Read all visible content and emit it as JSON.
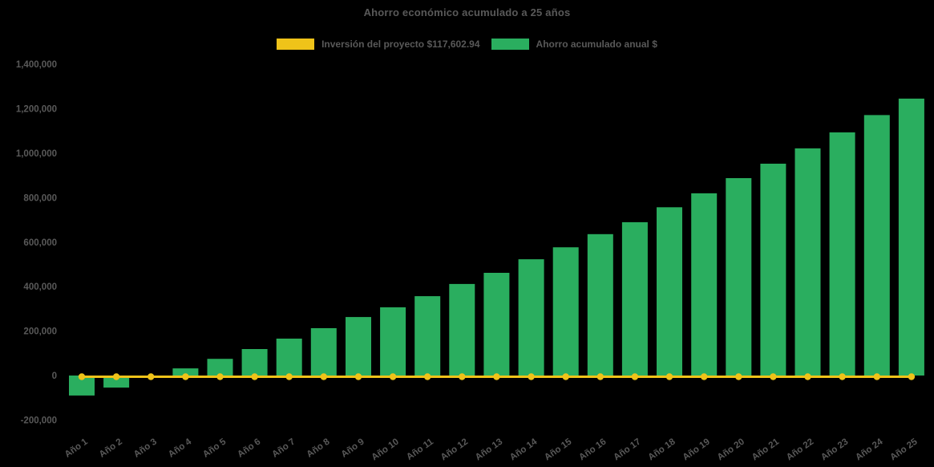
{
  "chart_data": {
    "type": "combo_bar_line",
    "title": "Ahorro económico acumulado a 25 años",
    "categories": [
      "Año 1",
      "Año 2",
      "Año 3",
      "Año 4",
      "Año 5",
      "Año 6",
      "Año 7",
      "Año 8",
      "Año 9",
      "Año 10",
      "Año 11",
      "Año 12",
      "Año 13",
      "Año 14",
      "Año 15",
      "Año 16",
      "Año 17",
      "Año 18",
      "Año 19",
      "Año 20",
      "Año 21",
      "Año 22",
      "Año 23",
      "Año 24",
      "Año 25"
    ],
    "series": [
      {
        "name": "Inversión del proyecto $117,602.94",
        "type": "line",
        "color": "#EFC319",
        "marker": "circle",
        "values": [
          0,
          0,
          0,
          0,
          0,
          0,
          0,
          0,
          0,
          0,
          0,
          0,
          0,
          0,
          0,
          0,
          0,
          0,
          0,
          0,
          0,
          0,
          0,
          0,
          0
        ]
      },
      {
        "name": "Ahorro acumulado anual $",
        "type": "bar",
        "color": "#2AAE5F",
        "values": [
          -90000,
          -54000,
          0,
          32000,
          75000,
          119000,
          166000,
          213000,
          263000,
          307000,
          357000,
          412000,
          462000,
          523000,
          577000,
          636000,
          690000,
          757000,
          820000,
          888000,
          953000,
          1022000,
          1094000,
          1172000,
          1246000
        ]
      }
    ],
    "y_axis": {
      "min": -200000,
      "max": 1400000,
      "step": 200000,
      "tick_labels": [
        "1,400,000",
        "1,200,000",
        "1,000,000",
        "800,000",
        "600,000",
        "400,000",
        "200,000",
        "0",
        "-200,000"
      ]
    },
    "x_axis": {
      "label_rotation_deg": -35
    },
    "legend_position": "top",
    "grid": false,
    "background": "#000000",
    "text_color": "#595959"
  }
}
